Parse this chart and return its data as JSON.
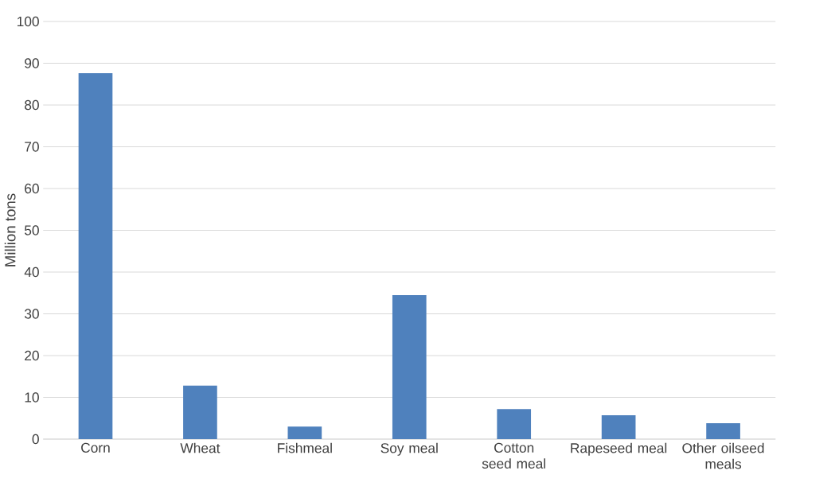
{
  "chart_data": {
    "type": "bar",
    "ylabel": "Million tons",
    "categories": [
      "Corn",
      "Wheat",
      "Fishmeal",
      "Soy meal",
      "Cotton seed meal",
      "Rapeseed meal",
      "Other oilseed meals"
    ],
    "values": [
      87.6,
      12.8,
      3.0,
      34.5,
      7.2,
      5.7,
      3.8
    ],
    "color": "#4f81bd",
    "ylim": [
      0,
      100
    ],
    "yticks": [
      0,
      10,
      20,
      30,
      40,
      50,
      60,
      70,
      80,
      90,
      100
    ],
    "grid": "y"
  }
}
